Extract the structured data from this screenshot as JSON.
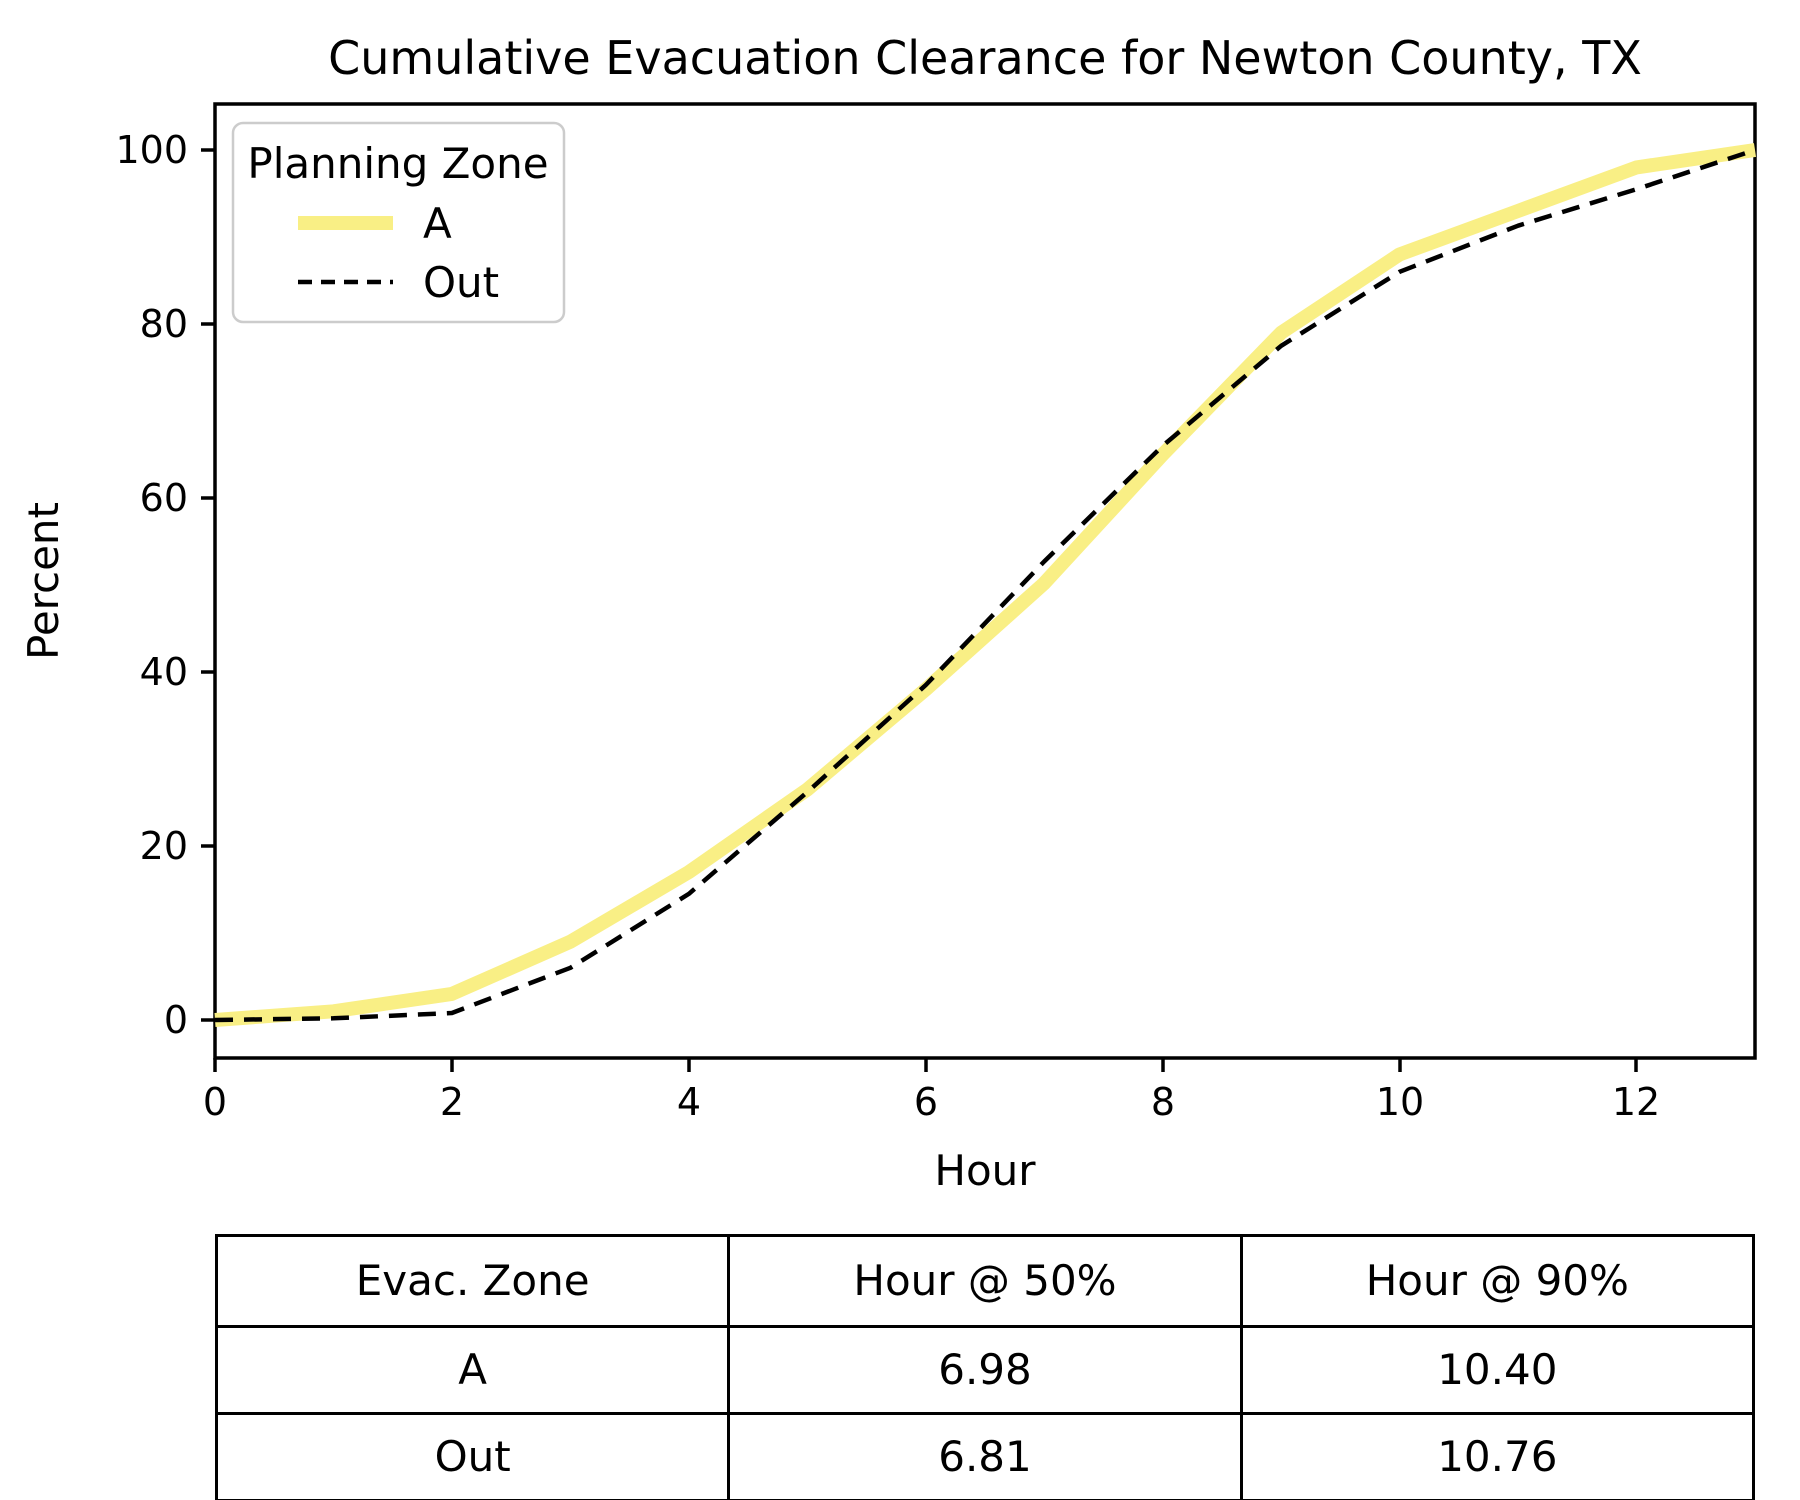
{
  "chart_data": {
    "type": "line",
    "title": "Cumulative Evacuation Clearance for Newton County, TX",
    "xlabel": "Hour",
    "ylabel": "Percent",
    "xlim": [
      0,
      13
    ],
    "ylim": [
      -5,
      105
    ],
    "xticks": [
      0,
      2,
      4,
      6,
      8,
      10,
      12
    ],
    "yticks": [
      0,
      20,
      40,
      60,
      80,
      100
    ],
    "grid": false,
    "legend": {
      "title": "Planning Zone",
      "position": "upper-left"
    },
    "x": [
      0,
      1,
      2,
      3,
      4,
      5,
      6,
      7,
      8,
      9,
      10,
      11,
      12,
      13
    ],
    "series": [
      {
        "name": "A",
        "color": "#F9EF85",
        "style": "solid",
        "values": [
          0,
          1,
          3,
          9,
          17,
          26.5,
          38,
          50.2,
          65,
          79,
          88,
          93,
          98,
          100
        ]
      },
      {
        "name": "Out",
        "color": "#000000",
        "style": "dashed",
        "values": [
          0,
          0.2,
          0.8,
          6,
          14.5,
          26.2,
          38.5,
          52.7,
          66,
          77.5,
          86,
          91.3,
          95.5,
          100
        ]
      }
    ]
  },
  "summary_table": {
    "headers": [
      "Evac. Zone",
      "Hour @ 50%",
      "Hour @ 90%"
    ],
    "rows": [
      [
        "A",
        "6.98",
        "10.40"
      ],
      [
        "Out",
        "6.81",
        "10.76"
      ]
    ]
  }
}
